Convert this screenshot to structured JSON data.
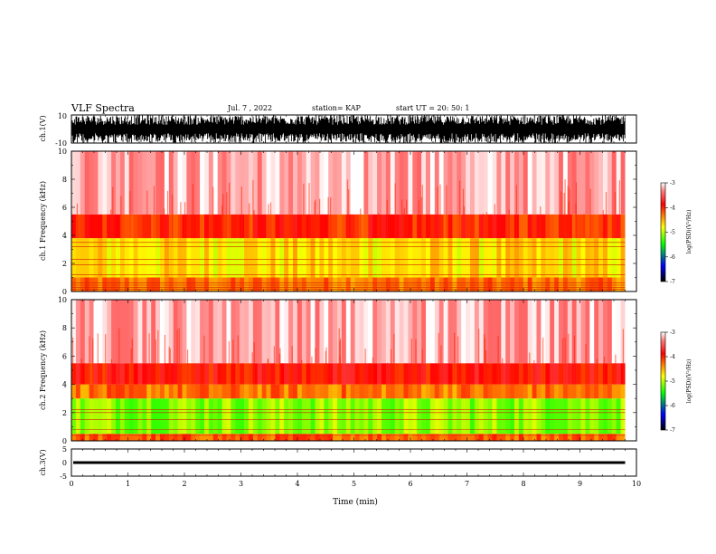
{
  "header": {
    "title": "VLF Spectra",
    "date": "Jul. 7 , 2022",
    "station": "station= KAP",
    "start": "start UT = 20: 50: 1"
  },
  "chart_data": [
    {
      "type": "line",
      "panel": "ch1_waveform",
      "ylabel": "ch.1(V)",
      "ylim": [
        -10,
        10
      ],
      "yticks": [
        "10",
        "-10"
      ],
      "xlim": [
        0,
        10
      ],
      "description_values": "dense oscillating signal spanning about -10 to 10 V over 0 to 9.8 min",
      "color": "#000000"
    },
    {
      "type": "heatmap",
      "panel": "ch1_spectrogram",
      "ylabel": "ch.1 Frequency (kHz)",
      "ylim": [
        0,
        10
      ],
      "yticks": [
        "0",
        "2",
        "4",
        "6",
        "8",
        "10"
      ],
      "xlim": [
        0,
        10
      ],
      "data_end_min": 9.8,
      "bands_khz": [
        {
          "from": 0.0,
          "to": 1.0,
          "level": -4.3
        },
        {
          "from": 1.0,
          "to": 3.8,
          "level": -4.7
        },
        {
          "from": 3.8,
          "to": 5.5,
          "level": -4.0
        },
        {
          "from": 5.5,
          "to": 10.0,
          "level": -3.2
        }
      ],
      "lines_khz": [
        0.15,
        0.3,
        0.45,
        0.6,
        1.2,
        1.9,
        2.3,
        3.2,
        3.5
      ]
    },
    {
      "type": "heatmap",
      "panel": "ch2_spectrogram",
      "ylabel": "ch.2 Frequency (kHz)",
      "ylim": [
        0,
        10
      ],
      "yticks": [
        "0",
        "2",
        "4",
        "6",
        "8",
        "10"
      ],
      "xlim": [
        0,
        10
      ],
      "data_end_min": 9.8,
      "bands_khz": [
        {
          "from": 0.0,
          "to": 0.5,
          "level": -4.2
        },
        {
          "from": 0.5,
          "to": 3.0,
          "level": -5.1
        },
        {
          "from": 3.0,
          "to": 4.0,
          "level": -4.3
        },
        {
          "from": 4.0,
          "to": 5.5,
          "level": -3.9
        },
        {
          "from": 5.5,
          "to": 10.0,
          "level": -3.2
        }
      ],
      "lines_khz": [
        0.4,
        0.8,
        1.5,
        2.0,
        2.2
      ]
    },
    {
      "type": "line",
      "panel": "ch3_waveform",
      "ylabel": "ch.3(V)",
      "ylim": [
        -5,
        5
      ],
      "yticks": [
        "5",
        "0",
        "-5"
      ],
      "xlim": [
        0,
        10
      ],
      "xticks": [
        "0",
        "1",
        "2",
        "3",
        "4",
        "5",
        "6",
        "7",
        "8",
        "9",
        "10"
      ],
      "xlabel": "Time (min)",
      "level_v": 0.0,
      "band_halfwidth_v": 0.5,
      "color": "#000000"
    }
  ],
  "colorbar": {
    "label": "log(PSD)(V²/Hz)",
    "range": [
      -7,
      -3
    ],
    "ticks": [
      "-3",
      "-4",
      "-5",
      "-6",
      "-7"
    ],
    "colors": [
      "#ffffff",
      "#ff0000",
      "#ffff00",
      "#00ff00",
      "#0000ff",
      "#000000"
    ]
  },
  "colors": {
    "ink": "#000000",
    "background": "#ffffff"
  }
}
